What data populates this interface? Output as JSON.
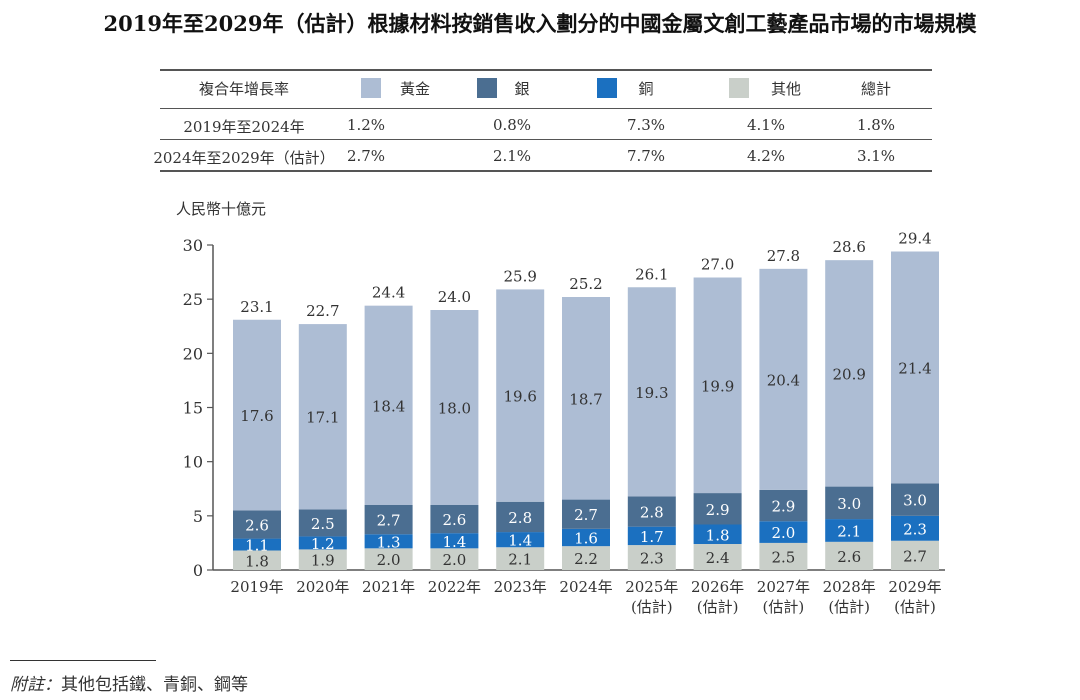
{
  "title": "2019年至2029年（估計）根據材料按銷售收入劃分的中國金屬文創工藝產品市場的市場規模",
  "cagr_table": {
    "header": "複合年增長率",
    "columns": [
      {
        "label": "黃金",
        "color": "#adbdd4"
      },
      {
        "label": "銀",
        "color": "#4b6e91"
      },
      {
        "label": "銅",
        "color": "#1b70c0"
      },
      {
        "label": "其他",
        "color": "#c9cfc9"
      },
      {
        "label": "總計"
      }
    ],
    "rows": [
      {
        "period": "2019年至2024年",
        "values": [
          "1.2%",
          "0.8%",
          "7.3%",
          "4.1%",
          "1.8%"
        ]
      },
      {
        "period": "2024年至2029年（估計）",
        "values": [
          "2.7%",
          "2.1%",
          "7.7%",
          "4.2%",
          "3.1%"
        ]
      }
    ]
  },
  "chart_data": {
    "type": "bar",
    "stacked": true,
    "ylabel": "人民幣十億元",
    "ylim": [
      0,
      30
    ],
    "yticks": [
      0,
      5,
      10,
      15,
      20,
      25,
      30
    ],
    "grid": false,
    "categories": [
      [
        "2019年"
      ],
      [
        "2020年"
      ],
      [
        "2021年"
      ],
      [
        "2022年"
      ],
      [
        "2023年"
      ],
      [
        "2024年"
      ],
      [
        "2025年",
        "(估計)"
      ],
      [
        "2026年",
        "(估計)"
      ],
      [
        "2027年",
        "(估計)"
      ],
      [
        "2028年",
        "(估計)"
      ],
      [
        "2029年",
        "(估計)"
      ]
    ],
    "series": [
      {
        "name": "其他",
        "color": "#c9cfc9",
        "label_color": "#333333",
        "values": [
          1.8,
          1.9,
          2.0,
          2.0,
          2.1,
          2.2,
          2.3,
          2.4,
          2.5,
          2.6,
          2.7
        ]
      },
      {
        "name": "銅",
        "color": "#1b70c0",
        "label_color": "#ffffff",
        "values": [
          1.1,
          1.2,
          1.3,
          1.4,
          1.4,
          1.6,
          1.7,
          1.8,
          2.0,
          2.1,
          2.3
        ]
      },
      {
        "name": "銀",
        "color": "#4b6e91",
        "label_color": "#ffffff",
        "values": [
          2.6,
          2.5,
          2.7,
          2.6,
          2.8,
          2.7,
          2.8,
          2.9,
          2.9,
          3.0,
          3.0
        ]
      },
      {
        "name": "黃金",
        "color": "#adbdd4",
        "label_color": "#333333",
        "values": [
          17.6,
          17.1,
          18.4,
          18.0,
          19.6,
          18.7,
          19.3,
          19.9,
          20.4,
          20.9,
          21.4
        ]
      }
    ],
    "totals": [
      "23.1",
      "22.7",
      "24.4",
      "24.0",
      "25.9",
      "25.2",
      "26.1",
      "27.0",
      "27.8",
      "28.6",
      "29.4"
    ]
  },
  "footnote": {
    "label": "附註：",
    "text": "其他包括鐵、青銅、鋼等"
  }
}
